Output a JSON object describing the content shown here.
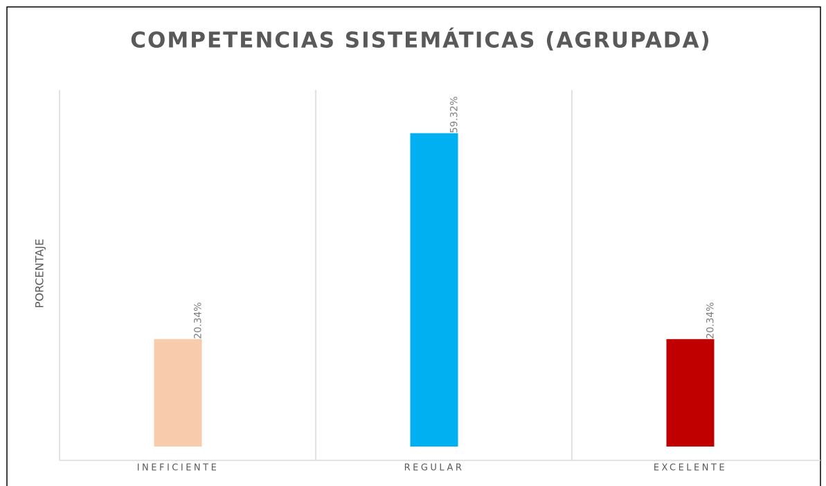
{
  "chart_data": {
    "type": "bar",
    "title": "COMPETENCIAS SISTEMÁTICAS (AGRUPADA)",
    "y_label": "PORCENTAJE",
    "categories": [
      "INEFICIENTE",
      "REGULAR",
      "EXCELENTE"
    ],
    "values": [
      20.34,
      59.32,
      20.34
    ],
    "value_labels": [
      "20.34%",
      "59.32%",
      "20.34%"
    ],
    "colors": [
      "#f8cbad",
      "#00b0f0",
      "#c00000"
    ]
  }
}
